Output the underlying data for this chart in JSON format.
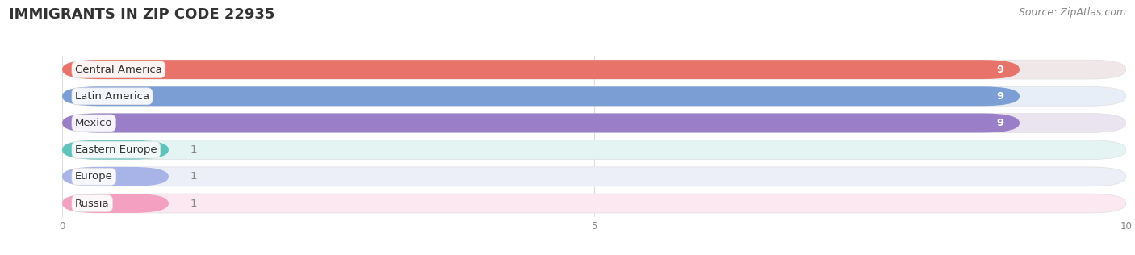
{
  "title": "IMMIGRANTS IN ZIP CODE 22935",
  "source": "Source: ZipAtlas.com",
  "categories": [
    "Central America",
    "Latin America",
    "Mexico",
    "Eastern Europe",
    "Europe",
    "Russia"
  ],
  "values": [
    9,
    9,
    9,
    1,
    1,
    1
  ],
  "bar_colors": [
    "#E8736B",
    "#7B9FD4",
    "#9B7EC8",
    "#5DC4BC",
    "#A8B4E8",
    "#F4A0C0"
  ],
  "bar_bg_colors": [
    "#F0E8E8",
    "#E8EEF8",
    "#EAE4F0",
    "#E4F4F2",
    "#ECEEF8",
    "#FCE8F0"
  ],
  "value_text_color_large": "#ffffff",
  "value_text_color_small": "#888888",
  "xlim": [
    -0.5,
    10
  ],
  "xticks": [
    0,
    5,
    10
  ],
  "label_fontsize": 9.5,
  "value_fontsize": 9.5,
  "title_fontsize": 13,
  "source_fontsize": 9,
  "background_color": "#ffffff",
  "grid_color": "#dddddd"
}
